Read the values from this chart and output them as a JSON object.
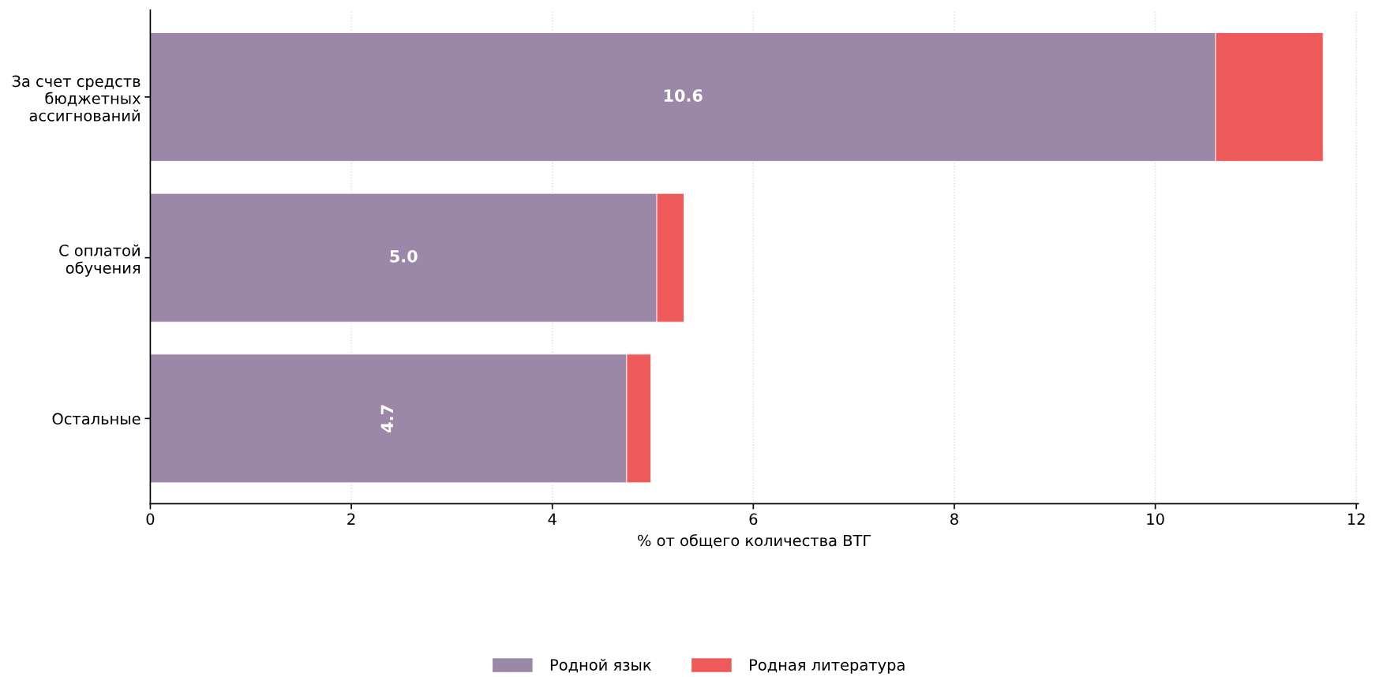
{
  "chart_data": {
    "type": "bar",
    "orientation": "horizontal",
    "stacked": true,
    "categories": [
      "За счет средств\nбюджетных\nассигнований",
      "С оплатой\nобучения",
      "Остальные"
    ],
    "series": [
      {
        "name": "Родной язык",
        "color": "#9b88a9",
        "values": [
          10.6,
          5.04,
          4.74
        ],
        "value_labels": [
          "10.6",
          "5.0",
          "4.7"
        ]
      },
      {
        "name": "Родная литература",
        "color": "#ee5a5a",
        "values": [
          1.07,
          0.27,
          0.24
        ]
      }
    ],
    "xlabel": "% от общего количества ВТГ",
    "xlim": [
      0,
      12.02
    ],
    "xticks": [
      0,
      2,
      4,
      6,
      8,
      10,
      12
    ],
    "grid": "x",
    "legend": "bottom"
  }
}
